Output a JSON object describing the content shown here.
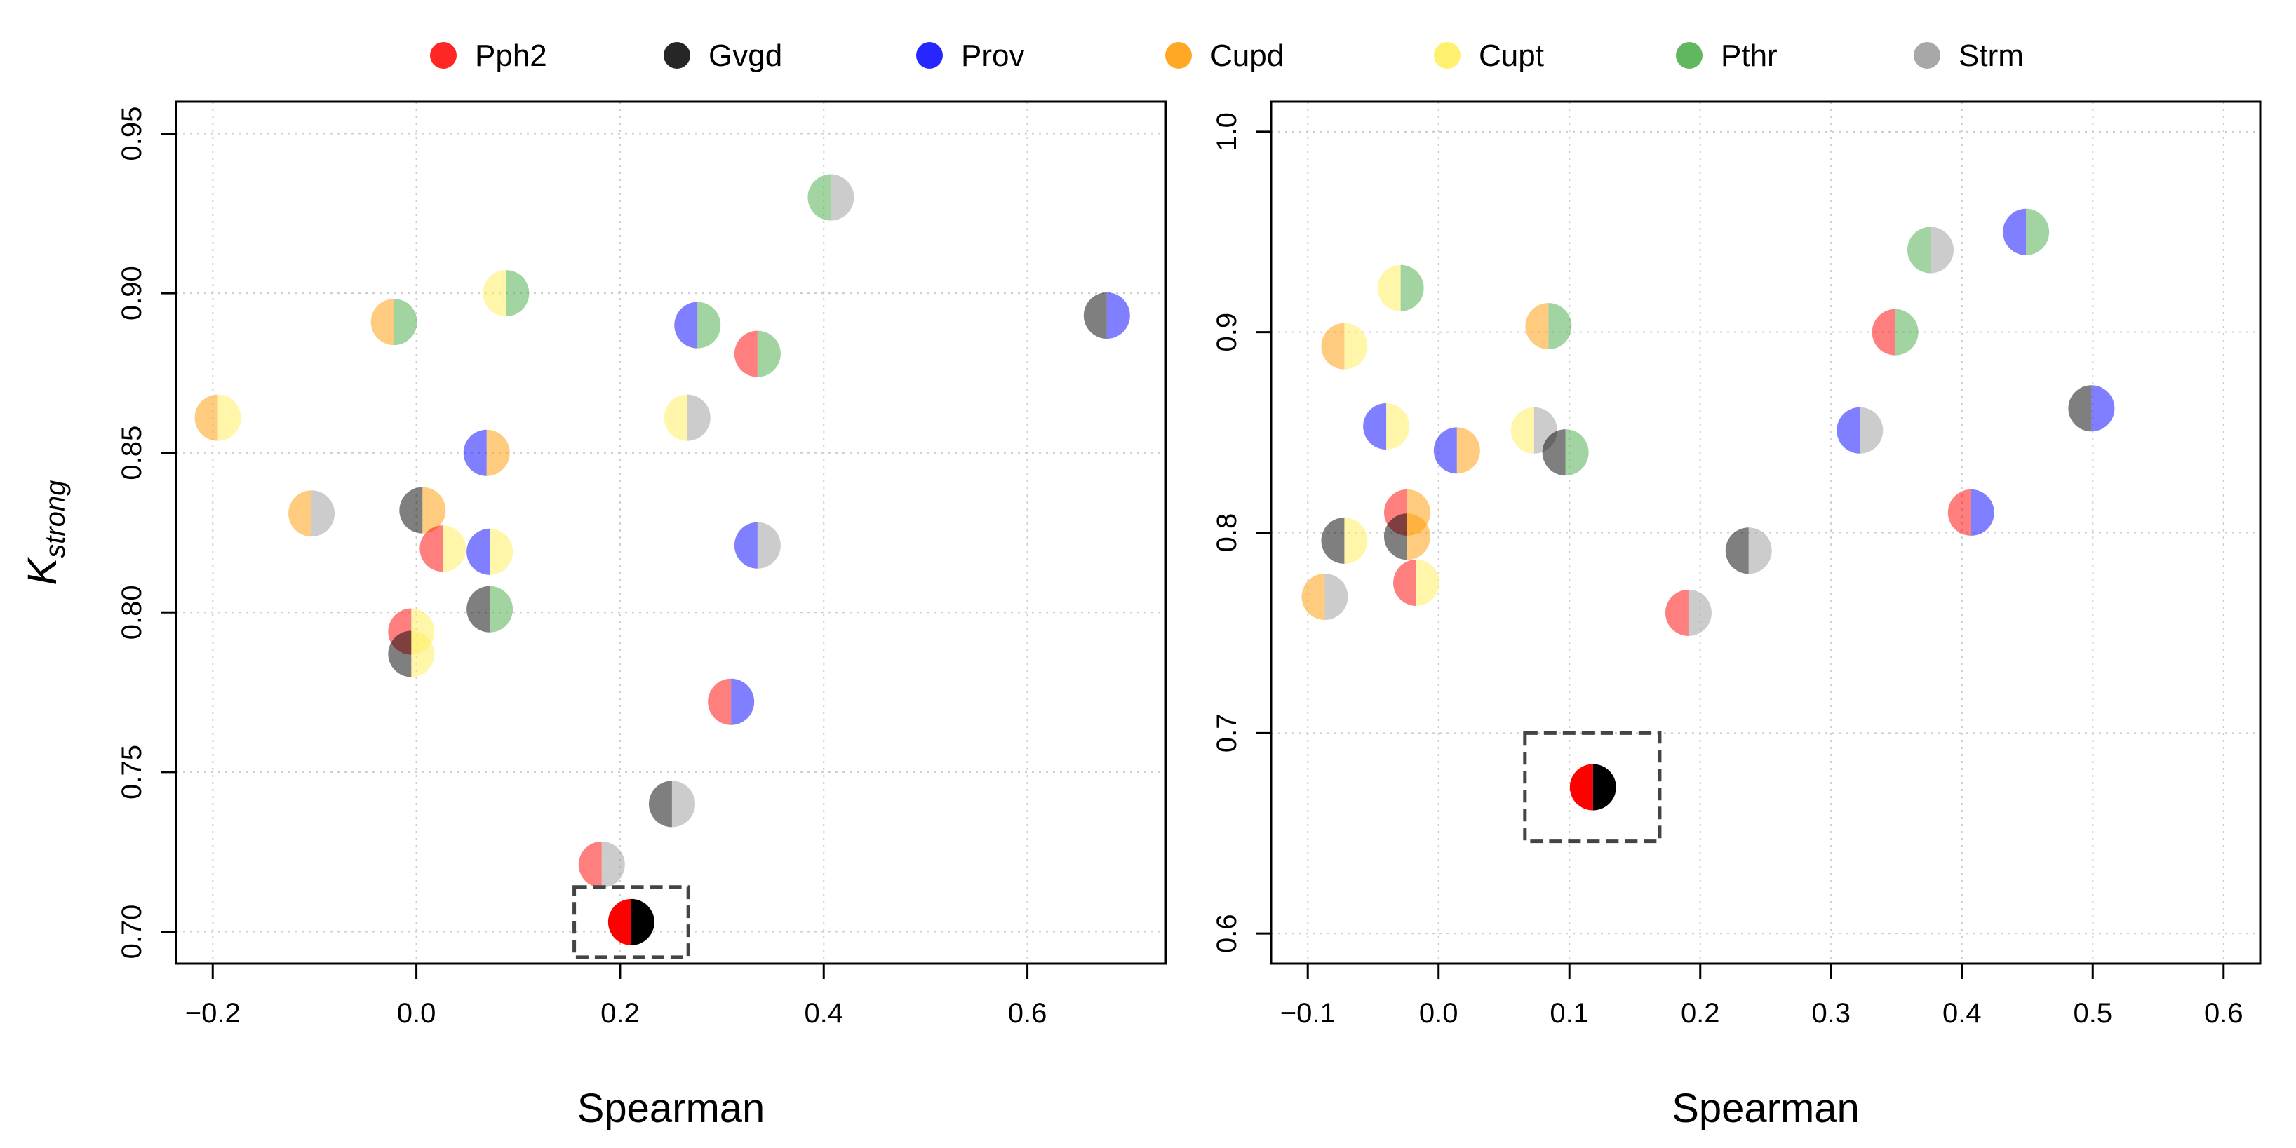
{
  "legend": [
    {
      "name": "Pph2",
      "color": "#ff0000"
    },
    {
      "name": "Gvgd",
      "color": "#000000"
    },
    {
      "name": "Prov",
      "color": "#0000ff"
    },
    {
      "name": "Cupd",
      "color": "#ff9900"
    },
    {
      "name": "Cupt",
      "color": "#ffee55"
    },
    {
      "name": "Pthr",
      "color": "#44aa44"
    },
    {
      "name": "Strm",
      "color": "#999999"
    }
  ],
  "chart_data": [
    {
      "type": "scatter",
      "title": "",
      "xlabel": "Spearman",
      "ylabel": "K",
      "ylabel_sub": "strong",
      "xlim": [
        -0.236,
        0.736
      ],
      "ylim": [
        0.69,
        0.96
      ],
      "xticks": [
        -0.2,
        0.0,
        0.2,
        0.4,
        0.6
      ],
      "xtick_labels": [
        "−0.2",
        "0.0",
        "0.2",
        "0.4",
        "0.6"
      ],
      "yticks": [
        0.7,
        0.75,
        0.8,
        0.85,
        0.9,
        0.95
      ],
      "ytick_labels": [
        "0.70",
        "0.75",
        "0.80",
        "0.85",
        "0.90",
        "0.95"
      ],
      "highlight_box": {
        "x": [
          0.155,
          0.267
        ],
        "y": [
          0.692,
          0.714
        ]
      },
      "points": [
        {
          "x": -0.195,
          "y": 0.861,
          "left": "Cupd",
          "right": "Cupt"
        },
        {
          "x": -0.103,
          "y": 0.831,
          "left": "Cupd",
          "right": "Strm"
        },
        {
          "x": -0.022,
          "y": 0.891,
          "left": "Cupd",
          "right": "Pthr"
        },
        {
          "x": 0.006,
          "y": 0.832,
          "left": "Gvgd",
          "right": "Cupd"
        },
        {
          "x": 0.026,
          "y": 0.82,
          "left": "Pph2",
          "right": "Cupt"
        },
        {
          "x": -0.005,
          "y": 0.794,
          "left": "Pph2",
          "right": "Cupt"
        },
        {
          "x": -0.005,
          "y": 0.787,
          "left": "Gvgd",
          "right": "Cupt"
        },
        {
          "x": 0.069,
          "y": 0.85,
          "left": "Prov",
          "right": "Cupd"
        },
        {
          "x": 0.072,
          "y": 0.819,
          "left": "Prov",
          "right": "Cupt"
        },
        {
          "x": 0.072,
          "y": 0.801,
          "left": "Gvgd",
          "right": "Pthr"
        },
        {
          "x": 0.088,
          "y": 0.9,
          "left": "Cupt",
          "right": "Pthr"
        },
        {
          "x": 0.182,
          "y": 0.721,
          "left": "Pph2",
          "right": "Strm"
        },
        {
          "x": 0.211,
          "y": 0.703,
          "left": "Pph2",
          "right": "Gvgd",
          "solid": true
        },
        {
          "x": 0.251,
          "y": 0.74,
          "left": "Gvgd",
          "right": "Strm"
        },
        {
          "x": 0.266,
          "y": 0.861,
          "left": "Cupt",
          "right": "Strm"
        },
        {
          "x": 0.276,
          "y": 0.89,
          "left": "Prov",
          "right": "Pthr"
        },
        {
          "x": 0.309,
          "y": 0.772,
          "left": "Pph2",
          "right": "Prov"
        },
        {
          "x": 0.335,
          "y": 0.881,
          "left": "Pph2",
          "right": "Pthr"
        },
        {
          "x": 0.335,
          "y": 0.821,
          "left": "Prov",
          "right": "Strm"
        },
        {
          "x": 0.407,
          "y": 0.93,
          "left": "Pthr",
          "right": "Strm"
        },
        {
          "x": 0.678,
          "y": 0.893,
          "left": "Gvgd",
          "right": "Prov"
        }
      ]
    },
    {
      "type": "scatter",
      "title": "",
      "xlabel": "Spearman",
      "ylabel": "",
      "xlim": [
        -0.128,
        0.628
      ],
      "ylim": [
        0.585,
        1.015
      ],
      "xticks": [
        -0.1,
        0.0,
        0.1,
        0.2,
        0.3,
        0.4,
        0.5,
        0.6
      ],
      "xtick_labels": [
        "−0.1",
        "0.0",
        "0.1",
        "0.2",
        "0.3",
        "0.4",
        "0.5",
        "0.6"
      ],
      "yticks": [
        0.6,
        0.7,
        0.8,
        0.9,
        1.0
      ],
      "ytick_labels": [
        "0.6",
        "0.7",
        "0.8",
        "0.9",
        "1.0"
      ],
      "highlight_box": {
        "x": [
          0.066,
          0.169
        ],
        "y": [
          0.646,
          0.7
        ]
      },
      "points": [
        {
          "x": -0.087,
          "y": 0.768,
          "left": "Cupd",
          "right": "Strm"
        },
        {
          "x": -0.072,
          "y": 0.893,
          "left": "Cupd",
          "right": "Cupt"
        },
        {
          "x": -0.072,
          "y": 0.796,
          "left": "Gvgd",
          "right": "Cupt"
        },
        {
          "x": -0.04,
          "y": 0.853,
          "left": "Prov",
          "right": "Cupt"
        },
        {
          "x": -0.029,
          "y": 0.922,
          "left": "Cupt",
          "right": "Pthr"
        },
        {
          "x": -0.024,
          "y": 0.81,
          "left": "Pph2",
          "right": "Cupd"
        },
        {
          "x": -0.024,
          "y": 0.798,
          "left": "Gvgd",
          "right": "Cupd"
        },
        {
          "x": -0.017,
          "y": 0.775,
          "left": "Pph2",
          "right": "Cupt"
        },
        {
          "x": 0.014,
          "y": 0.841,
          "left": "Prov",
          "right": "Cupd"
        },
        {
          "x": 0.073,
          "y": 0.851,
          "left": "Cupt",
          "right": "Strm"
        },
        {
          "x": 0.084,
          "y": 0.903,
          "left": "Cupd",
          "right": "Pthr"
        },
        {
          "x": 0.097,
          "y": 0.84,
          "left": "Gvgd",
          "right": "Pthr"
        },
        {
          "x": 0.118,
          "y": 0.673,
          "left": "Pph2",
          "right": "Gvgd",
          "solid": true
        },
        {
          "x": 0.191,
          "y": 0.76,
          "left": "Pph2",
          "right": "Strm"
        },
        {
          "x": 0.237,
          "y": 0.791,
          "left": "Gvgd",
          "right": "Strm"
        },
        {
          "x": 0.322,
          "y": 0.851,
          "left": "Prov",
          "right": "Strm"
        },
        {
          "x": 0.349,
          "y": 0.9,
          "left": "Pph2",
          "right": "Pthr"
        },
        {
          "x": 0.376,
          "y": 0.941,
          "left": "Pthr",
          "right": "Strm"
        },
        {
          "x": 0.407,
          "y": 0.81,
          "left": "Pph2",
          "right": "Prov"
        },
        {
          "x": 0.449,
          "y": 0.95,
          "left": "Prov",
          "right": "Pthr"
        },
        {
          "x": 0.499,
          "y": 0.862,
          "left": "Gvgd",
          "right": "Prov"
        }
      ]
    }
  ]
}
